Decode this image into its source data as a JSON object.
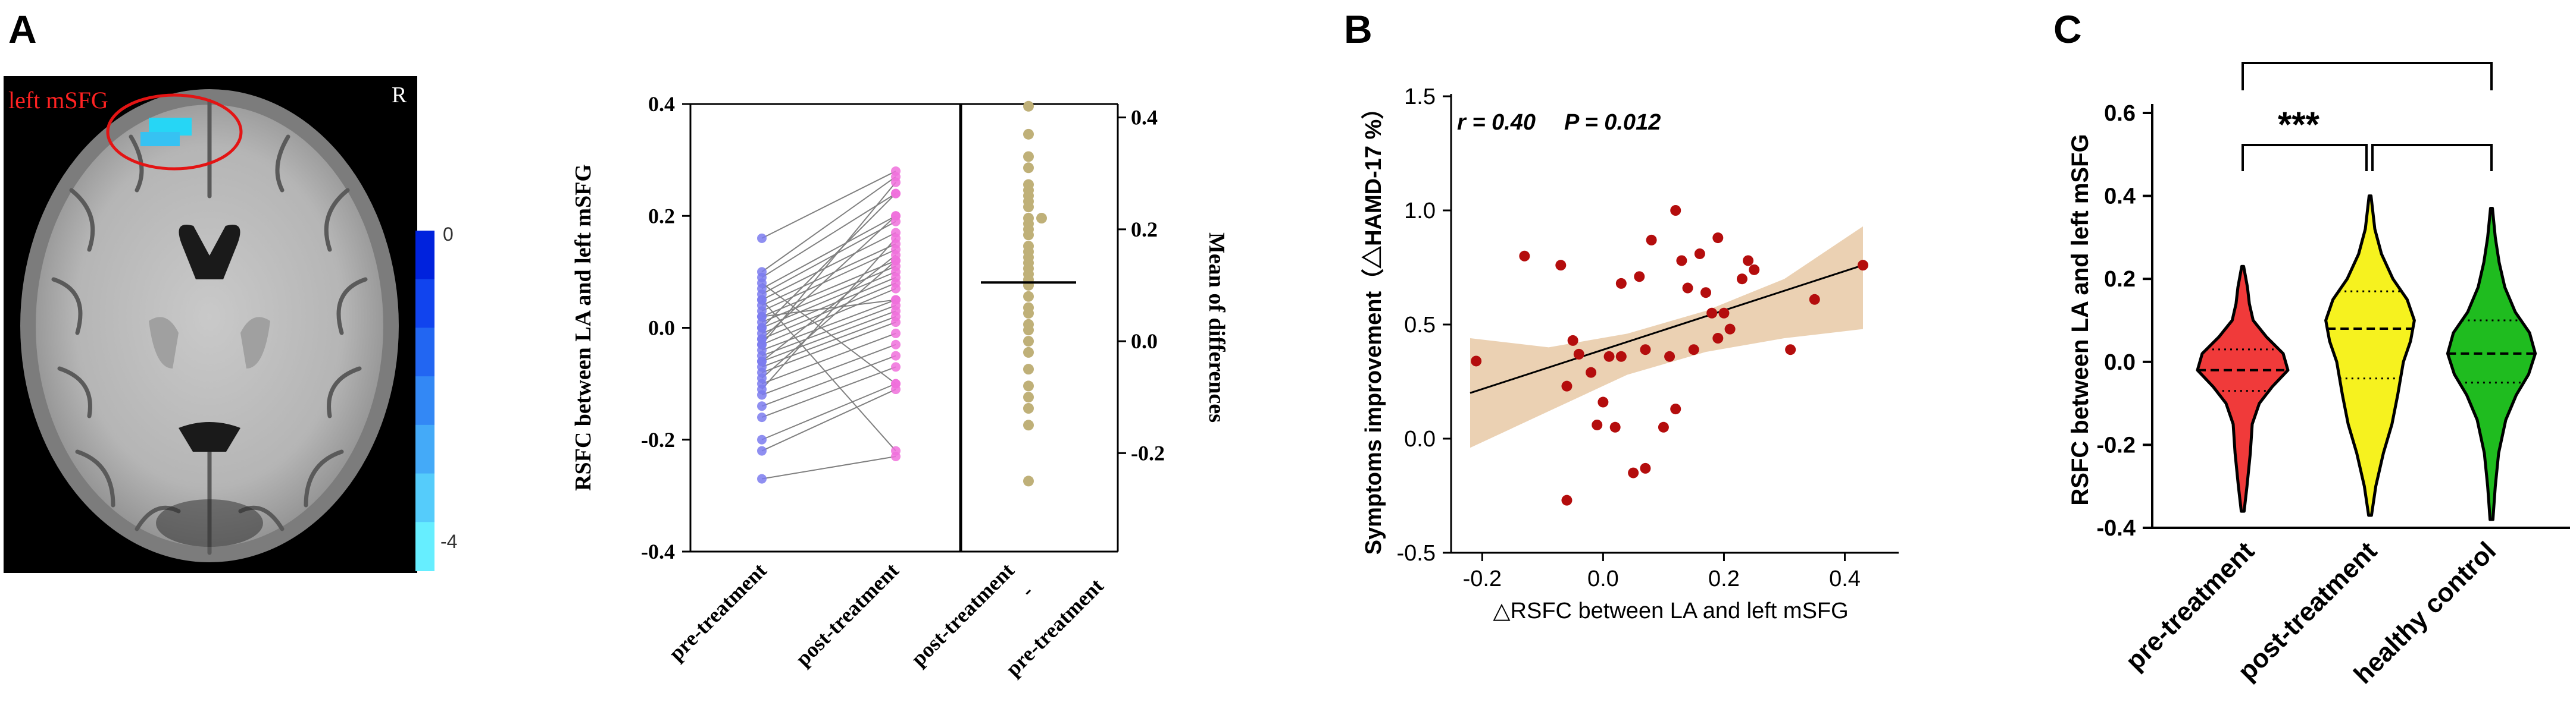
{
  "figure": {
    "panels": [
      {
        "letter": "A"
      },
      {
        "letter": "B"
      },
      {
        "letter": "C"
      }
    ]
  },
  "brain": {
    "roi_label": "left mSFG",
    "orientation_label": "R",
    "colorbar_max": "0",
    "colorbar_min": "-4",
    "colorbar_colors": [
      "#0022dd",
      "#1144ee",
      "#2266f2",
      "#3388f5",
      "#44aaf8",
      "#55ccfb",
      "#66eeff"
    ]
  },
  "chart_data": [
    {
      "type": "scatter",
      "id": "paired",
      "title": "",
      "ylabel": "RSFC between LA and left mSFG",
      "ylabel2": "Mean of differences",
      "ylim": [
        -0.4,
        0.4
      ],
      "y2lim": [
        -0.376,
        0.424
      ],
      "yticks": [
        "0.4",
        "0.2",
        "0.0",
        "-0.2",
        "-0.4"
      ],
      "y2ticks": [
        "0.4",
        "0.2",
        "0.0",
        "-0.2"
      ],
      "xlabels": [
        "pre-treatment",
        "post-treatment",
        "post-treatment",
        "-",
        "pre-treatment"
      ],
      "colors": {
        "pre": "#7b7bef",
        "post": "#f070dc",
        "diff": "#bfb078",
        "lines": "#808080"
      },
      "pairs": [
        [
          0.16,
          0.28
        ],
        [
          0.1,
          0.27
        ],
        [
          0.09,
          0.24
        ],
        [
          0.07,
          0.2
        ],
        [
          0.06,
          0.19
        ],
        [
          0.05,
          0.17
        ],
        [
          0.04,
          0.15
        ],
        [
          0.03,
          0.14
        ],
        [
          0.02,
          0.12
        ],
        [
          0.01,
          0.11
        ],
        [
          0.0,
          0.1
        ],
        [
          -0.01,
          0.09
        ],
        [
          -0.02,
          0.08
        ],
        [
          -0.03,
          0.07
        ],
        [
          -0.04,
          0.05
        ],
        [
          -0.05,
          0.04
        ],
        [
          -0.06,
          0.03
        ],
        [
          -0.07,
          0.02
        ],
        [
          -0.08,
          0.01
        ],
        [
          -0.1,
          -0.01
        ],
        [
          -0.12,
          -0.03
        ],
        [
          -0.14,
          -0.05
        ],
        [
          -0.16,
          -0.07
        ],
        [
          -0.2,
          -0.1
        ],
        [
          -0.22,
          -0.11
        ],
        [
          -0.27,
          -0.23
        ],
        [
          0.0,
          0.24
        ],
        [
          -0.02,
          0.2
        ],
        [
          0.02,
          0.05
        ],
        [
          -0.06,
          0.13
        ],
        [
          0.08,
          -0.1
        ],
        [
          -0.11,
          0.16
        ],
        [
          0.05,
          -0.22
        ],
        [
          -0.03,
          0.26
        ],
        [
          -0.09,
          0.12
        ]
      ],
      "mean_difference": 0.105,
      "differences": [
        0.42,
        0.37,
        0.33,
        0.31,
        0.28,
        0.27,
        0.26,
        0.25,
        0.24,
        0.22,
        0.22,
        0.21,
        0.2,
        0.19,
        0.17,
        0.16,
        0.15,
        0.14,
        0.13,
        0.12,
        0.11,
        0.1,
        0.08,
        0.06,
        0.05,
        0.03,
        0.02,
        0.0,
        -0.02,
        -0.05,
        -0.08,
        -0.1,
        -0.12,
        -0.15,
        -0.25
      ]
    },
    {
      "type": "scatter",
      "id": "correlation",
      "annotation_r": "r = 0.40",
      "annotation_p": "P = 0.012",
      "xlabel": "△RSFC between LA and left mSFG",
      "ylabel": "Symptoms improvement（△HAMD-17 %）",
      "xlim": [
        -0.22,
        0.43
      ],
      "ylim": [
        -0.5,
        1.5
      ],
      "xticks": [
        "-0.2",
        "0.0",
        "0.2",
        "0.4"
      ],
      "yticks": [
        "1.5",
        "1.0",
        "0.5",
        "0.0",
        "-0.5"
      ],
      "fit": {
        "x": [
          -0.22,
          0.43
        ],
        "y": [
          0.2,
          0.76
        ]
      },
      "band": {
        "upper": [
          0.44,
          0.4,
          0.46,
          0.56,
          0.7,
          0.93
        ],
        "lower": [
          -0.04,
          0.12,
          0.28,
          0.38,
          0.44,
          0.48
        ]
      },
      "colors": {
        "points": "#b40d0d",
        "band": "#e9ccab",
        "line": "#000000"
      },
      "points": [
        [
          -0.21,
          0.34
        ],
        [
          -0.13,
          0.8
        ],
        [
          -0.07,
          0.76
        ],
        [
          -0.05,
          0.43
        ],
        [
          -0.06,
          0.23
        ],
        [
          -0.04,
          0.37
        ],
        [
          -0.02,
          0.29
        ],
        [
          -0.01,
          0.06
        ],
        [
          0.0,
          0.16
        ],
        [
          0.01,
          0.36
        ],
        [
          0.02,
          0.05
        ],
        [
          0.03,
          0.36
        ],
        [
          0.03,
          0.68
        ],
        [
          0.05,
          -0.15
        ],
        [
          0.06,
          0.71
        ],
        [
          0.07,
          -0.13
        ],
        [
          0.07,
          0.39
        ],
        [
          0.08,
          0.87
        ],
        [
          0.1,
          0.05
        ],
        [
          0.11,
          0.36
        ],
        [
          0.12,
          1.0
        ],
        [
          0.12,
          0.13
        ],
        [
          0.13,
          0.78
        ],
        [
          0.14,
          0.66
        ],
        [
          0.15,
          0.39
        ],
        [
          0.16,
          0.81
        ],
        [
          0.17,
          0.64
        ],
        [
          0.18,
          0.55
        ],
        [
          0.19,
          0.88
        ],
        [
          0.19,
          0.44
        ],
        [
          0.2,
          0.55
        ],
        [
          0.21,
          0.48
        ],
        [
          0.23,
          0.7
        ],
        [
          0.24,
          0.78
        ],
        [
          0.25,
          0.74
        ],
        [
          0.31,
          0.39
        ],
        [
          0.35,
          0.61
        ],
        [
          0.43,
          0.76
        ],
        [
          -0.06,
          -0.27
        ]
      ]
    },
    {
      "type": "violin",
      "id": "groups",
      "ylabel": "RSFC between LA and left mSFG",
      "ylim": [
        -0.4,
        0.6
      ],
      "yticks": [
        "0.6",
        "0.4",
        "0.2",
        "0.0",
        "-0.2",
        "-0.4"
      ],
      "significance": "***",
      "categories": [
        "pre-treatment",
        "post-treatment",
        "healthy control"
      ],
      "colors": [
        "#f03a3a",
        "#f6f21f",
        "#1fbc1f"
      ],
      "medians": [
        -0.02,
        0.08,
        0.02
      ],
      "q1": [
        -0.07,
        -0.04,
        -0.05
      ],
      "q3": [
        0.03,
        0.17,
        0.1
      ],
      "shapes": [
        {
          "y": [
            -0.36,
            -0.3,
            -0.22,
            -0.15,
            -0.1,
            -0.06,
            -0.02,
            0.02,
            0.06,
            0.1,
            0.14,
            0.18,
            0.23
          ],
          "w": [
            0.03,
            0.09,
            0.16,
            0.2,
            0.35,
            0.62,
            0.95,
            0.85,
            0.5,
            0.22,
            0.14,
            0.1,
            0.02
          ]
        },
        {
          "y": [
            -0.37,
            -0.3,
            -0.22,
            -0.15,
            -0.08,
            0.0,
            0.05,
            0.1,
            0.15,
            0.2,
            0.26,
            0.32,
            0.4
          ],
          "w": [
            0.03,
            0.12,
            0.28,
            0.46,
            0.58,
            0.7,
            0.85,
            0.93,
            0.78,
            0.48,
            0.24,
            0.1,
            0.02
          ]
        },
        {
          "y": [
            -0.38,
            -0.3,
            -0.22,
            -0.14,
            -0.08,
            -0.03,
            0.02,
            0.07,
            0.12,
            0.18,
            0.24,
            0.3,
            0.37
          ],
          "w": [
            0.03,
            0.08,
            0.15,
            0.3,
            0.52,
            0.78,
            0.92,
            0.8,
            0.5,
            0.28,
            0.16,
            0.08,
            0.02
          ]
        }
      ]
    }
  ]
}
